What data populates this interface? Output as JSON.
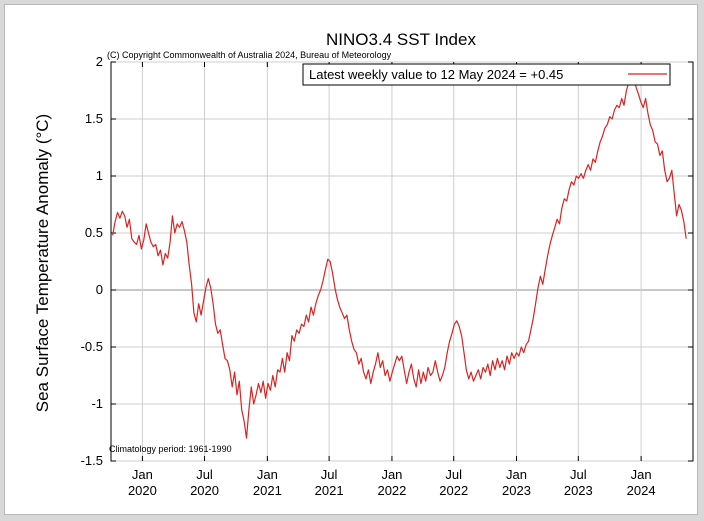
{
  "chart_data": {
    "type": "line",
    "title": "NINO3.4 SST Index",
    "copyright": "(C) Copyright Commonwealth of Australia 2024, Bureau of Meteorology",
    "ylabel": "Sea Surface Temperature Anomaly (°C)",
    "climatology_note": "Climatology period: 1961-1990",
    "ylim": [
      -1.5,
      2
    ],
    "yticks": [
      -1.5,
      -1,
      -0.5,
      0,
      0.5,
      1,
      1.5,
      2
    ],
    "ytick_labels": [
      "-1.5",
      "-1",
      "-0.5",
      "0",
      "0.5",
      "1",
      "1.5",
      "2"
    ],
    "xlim": [
      "2019-10-01",
      "2024-06-01"
    ],
    "xticks": [
      {
        "date": "2020-01-01",
        "line1": "Jan",
        "line2": "2020"
      },
      {
        "date": "2020-07-01",
        "line1": "Jul",
        "line2": "2020"
      },
      {
        "date": "2021-01-01",
        "line1": "Jan",
        "line2": "2021"
      },
      {
        "date": "2021-07-01",
        "line1": "Jul",
        "line2": "2021"
      },
      {
        "date": "2022-01-01",
        "line1": "Jan",
        "line2": "2022"
      },
      {
        "date": "2022-07-01",
        "line1": "Jul",
        "line2": "2022"
      },
      {
        "date": "2023-01-01",
        "line1": "Jan",
        "line2": "2023"
      },
      {
        "date": "2023-07-01",
        "line1": "Jul",
        "line2": "2023"
      },
      {
        "date": "2024-01-01",
        "line1": "Jan",
        "line2": "2024"
      }
    ],
    "grid": true,
    "legend": {
      "position": "top-right",
      "label": "Latest weekly value to 12 May 2024 = +0.45"
    },
    "colors": {
      "series": "#dd2222",
      "grid": "#cfcfcf",
      "zero_line": "#909090"
    },
    "series": [
      {
        "name": "Latest weekly value to 12 May 2024 = +0.45",
        "points": [
          [
            "2019-10-06",
            0.48
          ],
          [
            "2019-10-13",
            0.6
          ],
          [
            "2019-10-20",
            0.68
          ],
          [
            "2019-10-27",
            0.63
          ],
          [
            "2019-11-03",
            0.69
          ],
          [
            "2019-11-10",
            0.65
          ],
          [
            "2019-11-17",
            0.55
          ],
          [
            "2019-11-24",
            0.62
          ],
          [
            "2019-12-01",
            0.45
          ],
          [
            "2019-12-08",
            0.42
          ],
          [
            "2019-12-15",
            0.4
          ],
          [
            "2019-12-22",
            0.48
          ],
          [
            "2019-12-29",
            0.36
          ],
          [
            "2020-01-05",
            0.44
          ],
          [
            "2020-01-12",
            0.58
          ],
          [
            "2020-01-19",
            0.5
          ],
          [
            "2020-01-26",
            0.42
          ],
          [
            "2020-02-02",
            0.38
          ],
          [
            "2020-02-09",
            0.4
          ],
          [
            "2020-02-16",
            0.3
          ],
          [
            "2020-02-23",
            0.35
          ],
          [
            "2020-03-01",
            0.22
          ],
          [
            "2020-03-08",
            0.32
          ],
          [
            "2020-03-15",
            0.28
          ],
          [
            "2020-03-22",
            0.42
          ],
          [
            "2020-03-29",
            0.65
          ],
          [
            "2020-04-05",
            0.5
          ],
          [
            "2020-04-12",
            0.58
          ],
          [
            "2020-04-19",
            0.55
          ],
          [
            "2020-04-26",
            0.6
          ],
          [
            "2020-05-03",
            0.52
          ],
          [
            "2020-05-10",
            0.42
          ],
          [
            "2020-05-17",
            0.22
          ],
          [
            "2020-05-24",
            0.05
          ],
          [
            "2020-05-31",
            -0.2
          ],
          [
            "2020-06-07",
            -0.28
          ],
          [
            "2020-06-14",
            -0.12
          ],
          [
            "2020-06-21",
            -0.22
          ],
          [
            "2020-06-28",
            -0.1
          ],
          [
            "2020-07-05",
            0.02
          ],
          [
            "2020-07-12",
            0.1
          ],
          [
            "2020-07-19",
            0.02
          ],
          [
            "2020-07-26",
            -0.12
          ],
          [
            "2020-08-02",
            -0.3
          ],
          [
            "2020-08-09",
            -0.38
          ],
          [
            "2020-08-16",
            -0.35
          ],
          [
            "2020-08-23",
            -0.48
          ],
          [
            "2020-08-30",
            -0.6
          ],
          [
            "2020-09-06",
            -0.62
          ],
          [
            "2020-09-13",
            -0.7
          ],
          [
            "2020-09-20",
            -0.85
          ],
          [
            "2020-09-27",
            -0.72
          ],
          [
            "2020-10-04",
            -0.92
          ],
          [
            "2020-10-11",
            -0.8
          ],
          [
            "2020-10-18",
            -1.05
          ],
          [
            "2020-10-25",
            -1.15
          ],
          [
            "2020-11-01",
            -1.3
          ],
          [
            "2020-11-08",
            -1.05
          ],
          [
            "2020-11-15",
            -0.85
          ],
          [
            "2020-11-22",
            -1.0
          ],
          [
            "2020-11-29",
            -0.92
          ],
          [
            "2020-12-06",
            -0.82
          ],
          [
            "2020-12-13",
            -0.9
          ],
          [
            "2020-12-20",
            -0.8
          ],
          [
            "2020-12-27",
            -0.95
          ],
          [
            "2021-01-03",
            -0.82
          ],
          [
            "2021-01-10",
            -0.88
          ],
          [
            "2021-01-17",
            -0.75
          ],
          [
            "2021-01-24",
            -0.85
          ],
          [
            "2021-01-31",
            -0.7
          ],
          [
            "2021-02-07",
            -0.72
          ],
          [
            "2021-02-14",
            -0.6
          ],
          [
            "2021-02-21",
            -0.72
          ],
          [
            "2021-02-28",
            -0.55
          ],
          [
            "2021-03-07",
            -0.62
          ],
          [
            "2021-03-14",
            -0.4
          ],
          [
            "2021-03-21",
            -0.45
          ],
          [
            "2021-03-28",
            -0.35
          ],
          [
            "2021-04-04",
            -0.38
          ],
          [
            "2021-04-11",
            -0.3
          ],
          [
            "2021-04-18",
            -0.32
          ],
          [
            "2021-04-25",
            -0.22
          ],
          [
            "2021-05-02",
            -0.28
          ],
          [
            "2021-05-09",
            -0.15
          ],
          [
            "2021-05-16",
            -0.22
          ],
          [
            "2021-05-23",
            -0.12
          ],
          [
            "2021-05-30",
            -0.05
          ],
          [
            "2021-06-06",
            0.0
          ],
          [
            "2021-06-13",
            0.08
          ],
          [
            "2021-06-20",
            0.18
          ],
          [
            "2021-06-27",
            0.27
          ],
          [
            "2021-07-04",
            0.25
          ],
          [
            "2021-07-11",
            0.15
          ],
          [
            "2021-07-18",
            0.02
          ],
          [
            "2021-07-25",
            -0.08
          ],
          [
            "2021-08-01",
            -0.15
          ],
          [
            "2021-08-08",
            -0.2
          ],
          [
            "2021-08-15",
            -0.25
          ],
          [
            "2021-08-22",
            -0.22
          ],
          [
            "2021-08-29",
            -0.35
          ],
          [
            "2021-09-05",
            -0.45
          ],
          [
            "2021-09-12",
            -0.52
          ],
          [
            "2021-09-19",
            -0.55
          ],
          [
            "2021-09-26",
            -0.65
          ],
          [
            "2021-10-03",
            -0.6
          ],
          [
            "2021-10-10",
            -0.72
          ],
          [
            "2021-10-17",
            -0.78
          ],
          [
            "2021-10-24",
            -0.7
          ],
          [
            "2021-10-31",
            -0.82
          ],
          [
            "2021-11-07",
            -0.72
          ],
          [
            "2021-11-14",
            -0.65
          ],
          [
            "2021-11-21",
            -0.55
          ],
          [
            "2021-11-28",
            -0.68
          ],
          [
            "2021-12-05",
            -0.62
          ],
          [
            "2021-12-12",
            -0.75
          ],
          [
            "2021-12-19",
            -0.7
          ],
          [
            "2021-12-26",
            -0.8
          ],
          [
            "2022-01-02",
            -0.72
          ],
          [
            "2022-01-09",
            -0.65
          ],
          [
            "2022-01-16",
            -0.58
          ],
          [
            "2022-01-23",
            -0.62
          ],
          [
            "2022-01-30",
            -0.58
          ],
          [
            "2022-02-06",
            -0.7
          ],
          [
            "2022-02-13",
            -0.82
          ],
          [
            "2022-02-20",
            -0.72
          ],
          [
            "2022-02-27",
            -0.65
          ],
          [
            "2022-03-06",
            -0.78
          ],
          [
            "2022-03-13",
            -0.85
          ],
          [
            "2022-03-20",
            -0.7
          ],
          [
            "2022-03-27",
            -0.82
          ],
          [
            "2022-04-03",
            -0.72
          ],
          [
            "2022-04-10",
            -0.8
          ],
          [
            "2022-04-17",
            -0.68
          ],
          [
            "2022-04-24",
            -0.75
          ],
          [
            "2022-05-01",
            -0.72
          ],
          [
            "2022-05-08",
            -0.62
          ],
          [
            "2022-05-15",
            -0.72
          ],
          [
            "2022-05-22",
            -0.8
          ],
          [
            "2022-05-29",
            -0.75
          ],
          [
            "2022-06-05",
            -0.68
          ],
          [
            "2022-06-12",
            -0.55
          ],
          [
            "2022-06-19",
            -0.45
          ],
          [
            "2022-06-26",
            -0.38
          ],
          [
            "2022-07-03",
            -0.3
          ],
          [
            "2022-07-10",
            -0.27
          ],
          [
            "2022-07-17",
            -0.32
          ],
          [
            "2022-07-24",
            -0.4
          ],
          [
            "2022-07-31",
            -0.55
          ],
          [
            "2022-08-07",
            -0.7
          ],
          [
            "2022-08-14",
            -0.78
          ],
          [
            "2022-08-21",
            -0.72
          ],
          [
            "2022-08-28",
            -0.8
          ],
          [
            "2022-09-04",
            -0.75
          ],
          [
            "2022-09-11",
            -0.7
          ],
          [
            "2022-09-18",
            -0.78
          ],
          [
            "2022-09-25",
            -0.68
          ],
          [
            "2022-10-02",
            -0.72
          ],
          [
            "2022-10-09",
            -0.65
          ],
          [
            "2022-10-16",
            -0.75
          ],
          [
            "2022-10-23",
            -0.62
          ],
          [
            "2022-10-30",
            -0.7
          ],
          [
            "2022-11-06",
            -0.6
          ],
          [
            "2022-11-13",
            -0.68
          ],
          [
            "2022-11-20",
            -0.62
          ],
          [
            "2022-11-27",
            -0.7
          ],
          [
            "2022-12-04",
            -0.58
          ],
          [
            "2022-12-11",
            -0.65
          ],
          [
            "2022-12-18",
            -0.55
          ],
          [
            "2022-12-25",
            -0.6
          ],
          [
            "2023-01-01",
            -0.55
          ],
          [
            "2023-01-08",
            -0.58
          ],
          [
            "2023-01-15",
            -0.5
          ],
          [
            "2023-01-22",
            -0.55
          ],
          [
            "2023-01-29",
            -0.48
          ],
          [
            "2023-02-05",
            -0.45
          ],
          [
            "2023-02-12",
            -0.35
          ],
          [
            "2023-02-19",
            -0.25
          ],
          [
            "2023-02-26",
            -0.12
          ],
          [
            "2023-03-05",
            0.02
          ],
          [
            "2023-03-12",
            0.12
          ],
          [
            "2023-03-19",
            0.05
          ],
          [
            "2023-03-26",
            0.18
          ],
          [
            "2023-04-02",
            0.3
          ],
          [
            "2023-04-09",
            0.4
          ],
          [
            "2023-04-16",
            0.48
          ],
          [
            "2023-04-23",
            0.55
          ],
          [
            "2023-04-30",
            0.62
          ],
          [
            "2023-05-07",
            0.58
          ],
          [
            "2023-05-14",
            0.72
          ],
          [
            "2023-05-21",
            0.8
          ],
          [
            "2023-05-28",
            0.78
          ],
          [
            "2023-06-04",
            0.88
          ],
          [
            "2023-06-11",
            0.95
          ],
          [
            "2023-06-18",
            0.92
          ],
          [
            "2023-06-25",
            1.0
          ],
          [
            "2023-07-02",
            0.98
          ],
          [
            "2023-07-09",
            1.02
          ],
          [
            "2023-07-16",
            0.98
          ],
          [
            "2023-07-23",
            1.05
          ],
          [
            "2023-07-30",
            1.1
          ],
          [
            "2023-08-06",
            1.05
          ],
          [
            "2023-08-13",
            1.15
          ],
          [
            "2023-08-20",
            1.12
          ],
          [
            "2023-08-27",
            1.22
          ],
          [
            "2023-09-03",
            1.3
          ],
          [
            "2023-09-10",
            1.35
          ],
          [
            "2023-09-17",
            1.42
          ],
          [
            "2023-09-24",
            1.45
          ],
          [
            "2023-10-01",
            1.52
          ],
          [
            "2023-10-08",
            1.5
          ],
          [
            "2023-10-15",
            1.58
          ],
          [
            "2023-10-22",
            1.62
          ],
          [
            "2023-10-29",
            1.6
          ],
          [
            "2023-11-05",
            1.68
          ],
          [
            "2023-11-12",
            1.62
          ],
          [
            "2023-11-19",
            1.75
          ],
          [
            "2023-11-26",
            1.82
          ],
          [
            "2023-12-03",
            1.95
          ],
          [
            "2023-12-10",
            1.88
          ],
          [
            "2023-12-17",
            1.78
          ],
          [
            "2023-12-24",
            1.72
          ],
          [
            "2023-12-31",
            1.65
          ],
          [
            "2024-01-07",
            1.6
          ],
          [
            "2024-01-14",
            1.68
          ],
          [
            "2024-01-21",
            1.55
          ],
          [
            "2024-01-28",
            1.45
          ],
          [
            "2024-02-04",
            1.4
          ],
          [
            "2024-02-11",
            1.3
          ],
          [
            "2024-02-18",
            1.28
          ],
          [
            "2024-02-25",
            1.18
          ],
          [
            "2024-03-03",
            1.22
          ],
          [
            "2024-03-10",
            1.05
          ],
          [
            "2024-03-17",
            0.95
          ],
          [
            "2024-03-24",
            0.98
          ],
          [
            "2024-03-31",
            1.05
          ],
          [
            "2024-04-07",
            0.85
          ],
          [
            "2024-04-14",
            0.65
          ],
          [
            "2024-04-21",
            0.75
          ],
          [
            "2024-04-28",
            0.7
          ],
          [
            "2024-05-05",
            0.6
          ],
          [
            "2024-05-12",
            0.45
          ]
        ]
      }
    ]
  }
}
